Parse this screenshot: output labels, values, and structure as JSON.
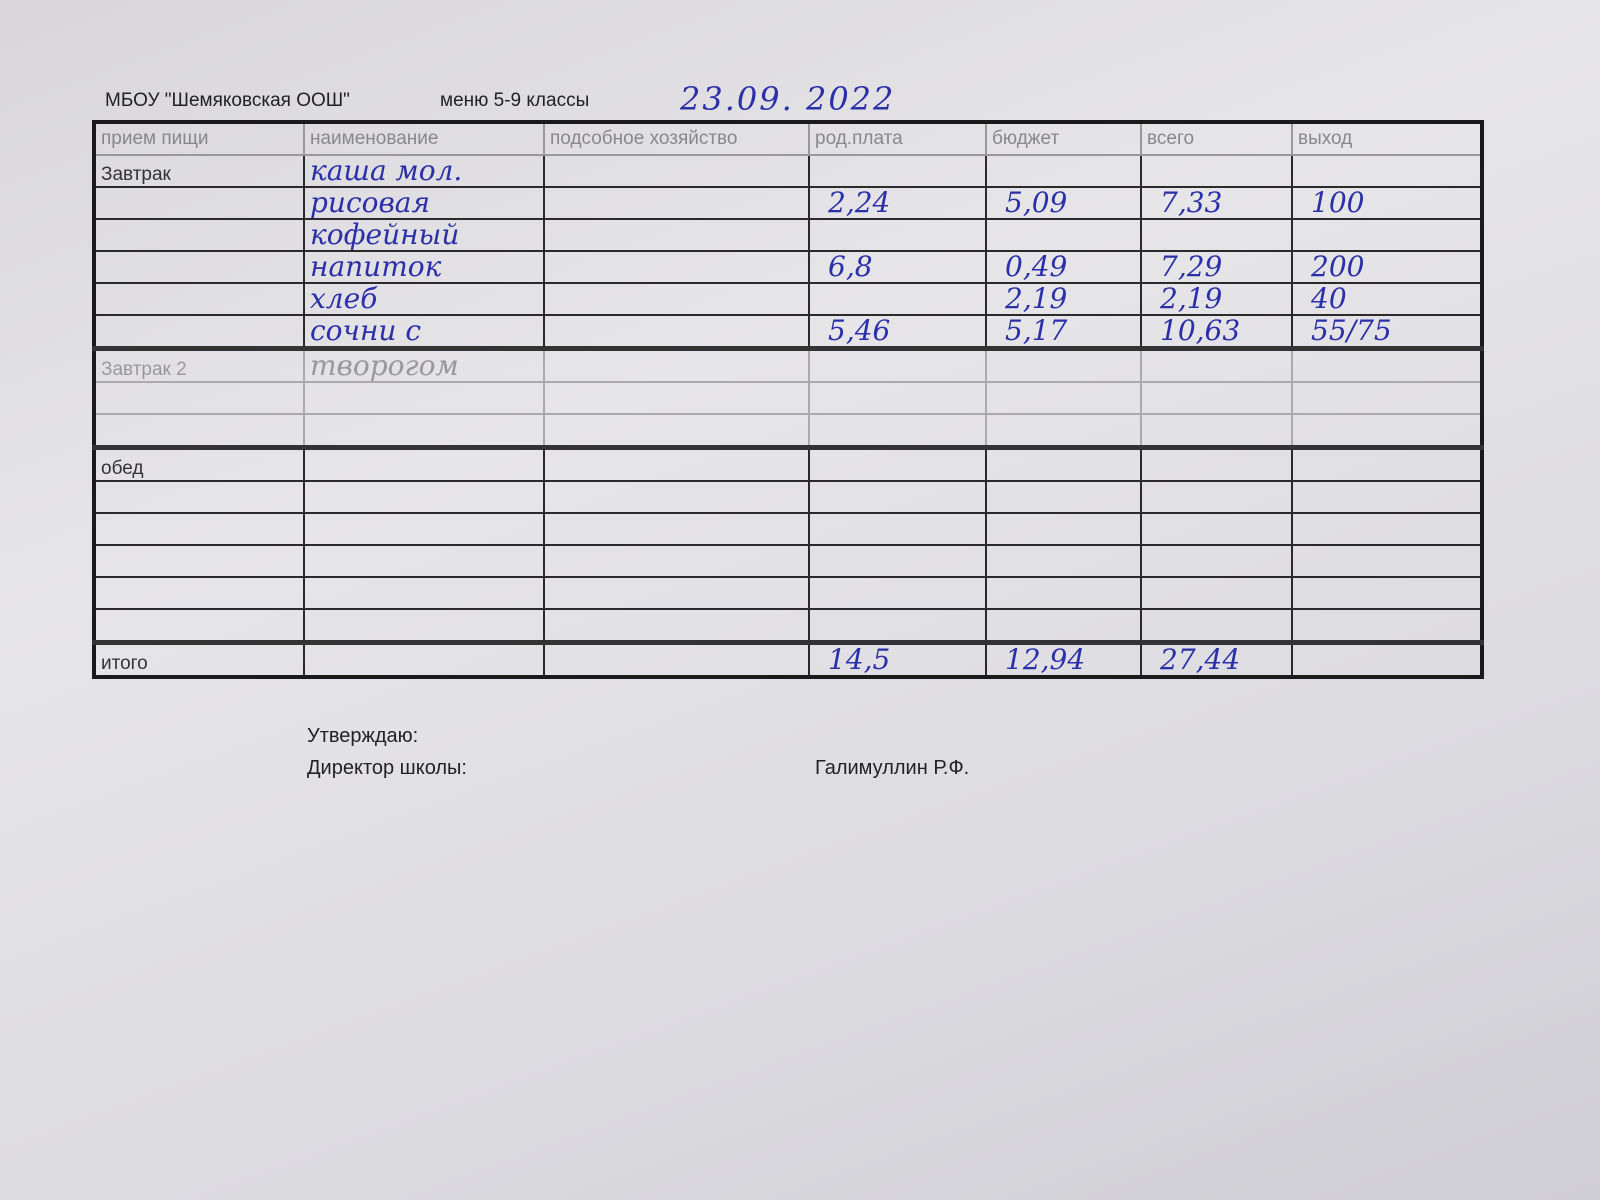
{
  "header": {
    "school": "МБОУ \"Шемяковская ООШ\"",
    "menu": "меню 5-9 классы",
    "date": "23.09. 2022"
  },
  "columns": [
    "прием пищи",
    "наименование",
    "подсобное хозяйство",
    "род.плата",
    "бюджет",
    "всего",
    "выход"
  ],
  "sections": [
    {
      "label": "Завтрак",
      "rows": [
        [
          "Завтрак",
          "каша мол.",
          "",
          "",
          "",
          "",
          ""
        ],
        [
          "",
          "рисовая",
          "",
          "2,24",
          "5,09",
          "7,33",
          "100"
        ],
        [
          "",
          "кофейный",
          "",
          "",
          "",
          "",
          ""
        ],
        [
          "",
          "напиток",
          "",
          "6,8",
          "0,49",
          "7,29",
          "200"
        ],
        [
          "",
          "хлеб",
          "",
          "",
          "2,19",
          "2,19",
          "40"
        ],
        [
          "",
          "сочни с",
          "",
          "5,46",
          "5,17",
          "10,63",
          "55/75"
        ]
      ]
    },
    {
      "label": "Завтрак 2",
      "rows": [
        [
          "Завтрак 2",
          "творогом",
          "",
          "",
          "",
          "",
          ""
        ],
        [
          "",
          "",
          "",
          "",
          "",
          "",
          ""
        ],
        [
          "",
          "",
          "",
          "",
          "",
          "",
          ""
        ]
      ]
    },
    {
      "label": "обед",
      "rows": [
        [
          "обед",
          "",
          "",
          "",
          "",
          "",
          ""
        ],
        [
          "",
          "",
          "",
          "",
          "",
          "",
          ""
        ],
        [
          "",
          "",
          "",
          "",
          "",
          "",
          ""
        ],
        [
          "",
          "",
          "",
          "",
          "",
          "",
          ""
        ],
        [
          "",
          "",
          "",
          "",
          "",
          "",
          ""
        ],
        [
          "",
          "",
          "",
          "",
          "",
          "",
          ""
        ]
      ]
    }
  ],
  "total": [
    "итого",
    "",
    "",
    "14,5",
    "12,94",
    "27,44",
    ""
  ],
  "footer": {
    "approve": "Утверждаю:",
    "director_label": "Директор школы:",
    "director_name": "Галимуллин Р.Ф."
  },
  "colors": {
    "ink": "#2b2fa8",
    "paper": "#e2e1e5"
  }
}
